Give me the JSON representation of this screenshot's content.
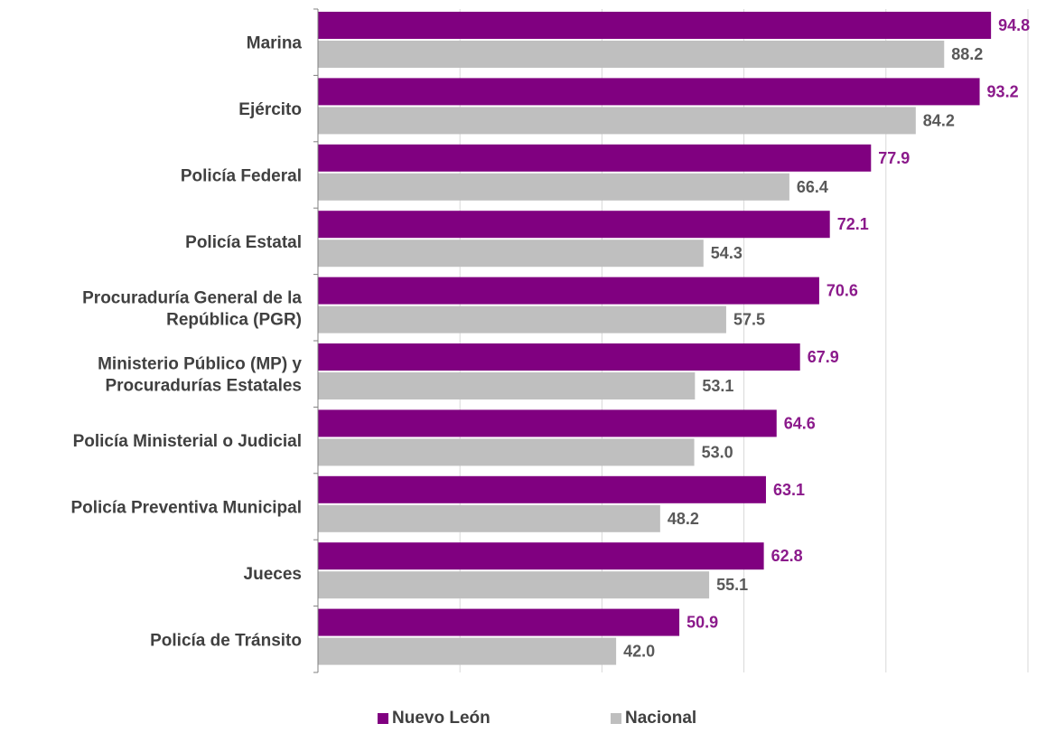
{
  "chart_data": {
    "type": "bar",
    "orientation": "horizontal",
    "categories": [
      [
        "Marina"
      ],
      [
        "Ejército"
      ],
      [
        "Policía Federal"
      ],
      [
        "Policía Estatal"
      ],
      [
        "Procuraduría General de la",
        "República (PGR)"
      ],
      [
        "Ministerio Público (MP) y",
        "Procuradurías Estatales"
      ],
      [
        "Policía Ministerial o Judicial"
      ],
      [
        "Policía Preventiva Municipal"
      ],
      [
        "Jueces"
      ],
      [
        "Policía de Tránsito"
      ]
    ],
    "series": [
      {
        "name": "Nuevo León",
        "color": "#800080",
        "label_color": "#8B1A8B",
        "values": [
          94.8,
          93.2,
          77.9,
          72.1,
          70.6,
          67.9,
          64.6,
          63.1,
          62.8,
          50.9
        ]
      },
      {
        "name": "Nacional",
        "color": "#BFBFBF",
        "label_color": "#595959",
        "values": [
          88.2,
          84.2,
          66.4,
          54.3,
          57.5,
          53.1,
          53.0,
          48.2,
          55.1,
          42.0
        ]
      }
    ],
    "xlim": [
      0,
      100
    ],
    "grid": true,
    "legend": "bottom-center"
  }
}
